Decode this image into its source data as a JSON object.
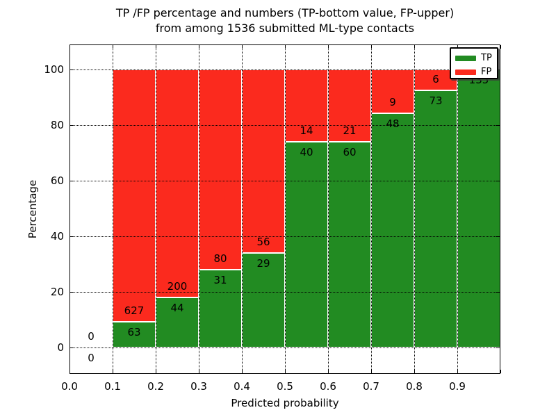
{
  "title": {
    "line1": "TP /FP percentage and numbers (TP-bottom value, FP-upper)",
    "line2": "from among 1536 submitted ML-type contacts"
  },
  "axes": {
    "x": {
      "label": "Predicted probability",
      "tick_labels": [
        "0.0",
        "0.1",
        "0.2",
        "0.3",
        "0.4",
        "0.5",
        "0.6",
        "0.7",
        "0.8",
        "0.9"
      ],
      "range": [
        0.0,
        1.0
      ]
    },
    "y": {
      "label": "Percentage",
      "tick_labels": [
        "0",
        "20",
        "40",
        "60",
        "80",
        "100"
      ],
      "tick_values": [
        0,
        20,
        40,
        60,
        80,
        100
      ],
      "range": [
        -10,
        110
      ]
    }
  },
  "legend": {
    "position": "upper-right",
    "items": [
      {
        "label": "TP",
        "color": "#228b22"
      },
      {
        "label": "FP",
        "color": "#fb2a1e"
      }
    ]
  },
  "colors": {
    "tp": "#228b22",
    "fp": "#fb2a1e",
    "grid": "#000000",
    "bar_edge": "#ffffff",
    "background": "#ffffff"
  },
  "chart_data": {
    "type": "bar",
    "stacked": true,
    "normalized_to_percent": true,
    "title": "TP /FP percentage and numbers (TP-bottom value, FP-upper) from among 1536 submitted ML-type contacts",
    "xlabel": "Predicted probability",
    "ylabel": "Percentage",
    "ylim": [
      -10,
      110
    ],
    "xlim": [
      0.0,
      1.0
    ],
    "grid": true,
    "bin_edges": [
      0.0,
      0.1,
      0.2,
      0.3,
      0.4,
      0.5,
      0.6,
      0.7,
      0.8,
      0.9,
      1.0
    ],
    "bin_labels": [
      "0.0-0.1",
      "0.1-0.2",
      "0.2-0.3",
      "0.3-0.4",
      "0.4-0.5",
      "0.5-0.6",
      "0.6-0.7",
      "0.7-0.8",
      "0.8-0.9",
      "0.9-1.0"
    ],
    "series": [
      {
        "name": "TP",
        "counts": [
          0,
          63,
          44,
          31,
          29,
          40,
          60,
          48,
          73,
          135
        ]
      },
      {
        "name": "FP",
        "counts": [
          0,
          627,
          200,
          80,
          56,
          14,
          21,
          9,
          6,
          0
        ]
      }
    ],
    "tp_percent_of_bin": [
      0,
      9.13,
      18.03,
      27.93,
      34.12,
      74.07,
      74.07,
      84.21,
      92.41,
      100
    ],
    "total_contacts": 1536
  }
}
